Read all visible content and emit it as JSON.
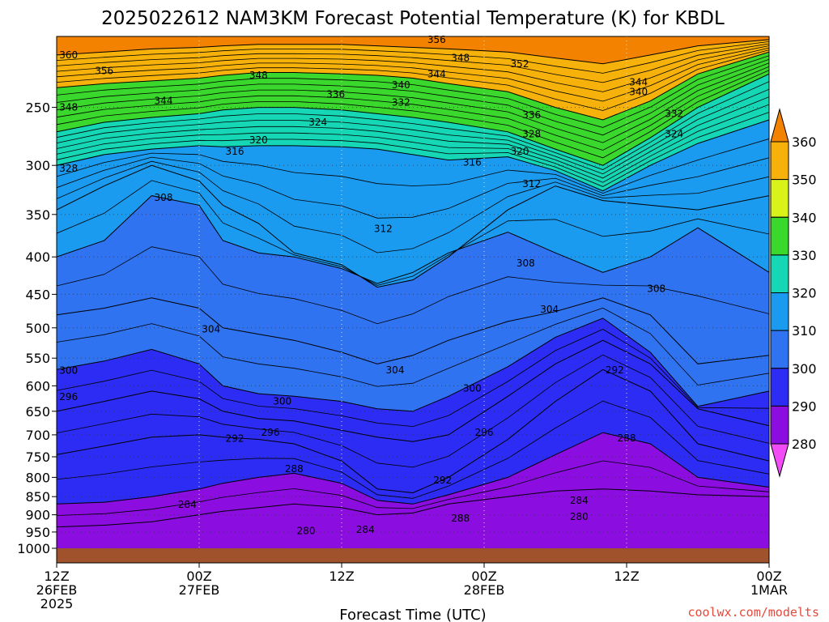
{
  "page_title": "2025022612 NAM3KM Forecast Potential Temperature (K) for KBDL",
  "x_axis_title": "Forecast Time (UTC)",
  "credit": "coolwx.com/modelts",
  "chart_data": {
    "type": "heatmap",
    "title": "2025022612 NAM3KM Forecast Potential Temperature (K) for KBDL",
    "xlabel": "Forecast Time (UTC)",
    "ylabel": "",
    "x_ticks": [
      {
        "hour": 0,
        "lines": [
          "12Z",
          "26FEB",
          "2025"
        ]
      },
      {
        "hour": 12,
        "lines": [
          "00Z",
          "27FEB"
        ]
      },
      {
        "hour": 24,
        "lines": [
          "12Z"
        ]
      },
      {
        "hour": 36,
        "lines": [
          "00Z",
          "28FEB"
        ]
      },
      {
        "hour": 48,
        "lines": [
          "12Z"
        ]
      },
      {
        "hour": 60,
        "lines": [
          "00Z",
          "1MAR"
        ]
      }
    ],
    "x_range": [
      0,
      60
    ],
    "y_axis_pressure_hpa": [
      250,
      300,
      350,
      400,
      450,
      500,
      550,
      600,
      650,
      700,
      750,
      800,
      850,
      900,
      950,
      1000
    ],
    "y_range_hpa": [
      1000,
      200
    ],
    "y_scale": "log-pressure",
    "grid": "dotted",
    "colorbar": {
      "ticks": [
        280,
        290,
        300,
        310,
        320,
        330,
        340,
        350,
        360
      ],
      "colors": [
        "#f14cf5",
        "#8b0de0",
        "#2c2cf5",
        "#2f73f0",
        "#1b9bf0",
        "#15d6b5",
        "#3ad82c",
        "#d8f21a",
        "#f6b20a",
        "#f28200"
      ]
    },
    "isentropes_sample": [
      {
        "theta_k": 284,
        "pressure_hpa": [
          935,
          930,
          920,
          900,
          890,
          880,
          870,
          880,
          900,
          895,
          870,
          850,
          835,
          830,
          835,
          845,
          850
        ]
      },
      {
        "theta_k": 288,
        "pressure_hpa": [
          870,
          865,
          850,
          830,
          815,
          800,
          790,
          815,
          860,
          870,
          845,
          800,
          745,
          695,
          720,
          800,
          825
        ]
      },
      {
        "theta_k": 292,
        "pressure_hpa": [
          745,
          725,
          705,
          700,
          705,
          710,
          720,
          760,
          830,
          840,
          800,
          710,
          630,
          570,
          610,
          720,
          760
        ]
      },
      {
        "theta_k": 296,
        "pressure_hpa": [
          650,
          630,
          610,
          625,
          650,
          665,
          670,
          690,
          705,
          715,
          700,
          620,
          560,
          520,
          560,
          645,
          680
        ]
      },
      {
        "theta_k": 300,
        "pressure_hpa": [
          570,
          555,
          535,
          560,
          600,
          615,
          620,
          630,
          645,
          650,
          620,
          565,
          515,
          485,
          540,
          640,
          610
        ]
      },
      {
        "theta_k": 304,
        "pressure_hpa": [
          480,
          470,
          455,
          470,
          500,
          510,
          520,
          540,
          560,
          545,
          520,
          490,
          475,
          455,
          480,
          560,
          545
        ]
      },
      {
        "theta_k": 308,
        "pressure_hpa": [
          400,
          380,
          330,
          340,
          380,
          395,
          400,
          415,
          435,
          420,
          395,
          370,
          395,
          420,
          400,
          365,
          420
        ]
      },
      {
        "theta_k": 312,
        "pressure_hpa": [
          345,
          320,
          300,
          315,
          340,
          360,
          395,
          410,
          440,
          430,
          400,
          345,
          320,
          335,
          340,
          345,
          330
        ]
      },
      {
        "theta_k": 320,
        "pressure_hpa": [
          300,
          290,
          285,
          282,
          283,
          282,
          282,
          283,
          285,
          290,
          295,
          292,
          305,
          325,
          300,
          280,
          260
        ]
      },
      {
        "theta_k": 332,
        "pressure_hpa": [
          270,
          262,
          258,
          255,
          252,
          250,
          250,
          252,
          255,
          258,
          262,
          270,
          285,
          300,
          275,
          250,
          225
        ]
      },
      {
        "theta_k": 344,
        "pressure_hpa": [
          235,
          232,
          230,
          228,
          226,
          224,
          224,
          225,
          226,
          228,
          232,
          238,
          250,
          260,
          245,
          225,
          210
        ]
      },
      {
        "theta_k": 356,
        "pressure_hpa": [
          212,
          210,
          208,
          207,
          206,
          205,
          205,
          205,
          206,
          207,
          208,
          210,
          214,
          218,
          212,
          206,
          202
        ]
      }
    ],
    "isentropes_sample_hours": [
      0,
      4,
      8,
      12,
      14,
      17,
      20,
      24,
      27,
      30,
      33,
      38,
      42,
      46,
      50,
      54,
      60
    ],
    "contour_labels": [
      {
        "text": "360",
        "hour": 1.0,
        "p": 212
      },
      {
        "text": "356",
        "hour": 4.0,
        "p": 223
      },
      {
        "text": "348",
        "hour": 1.0,
        "p": 250
      },
      {
        "text": "344",
        "hour": 9.0,
        "p": 245
      },
      {
        "text": "348",
        "hour": 17.0,
        "p": 226
      },
      {
        "text": "336",
        "hour": 23.5,
        "p": 240
      },
      {
        "text": "324",
        "hour": 22.0,
        "p": 262
      },
      {
        "text": "340",
        "hour": 29.0,
        "p": 233
      },
      {
        "text": "332",
        "hour": 29.0,
        "p": 246
      },
      {
        "text": "356",
        "hour": 32.0,
        "p": 202
      },
      {
        "text": "348",
        "hour": 34.0,
        "p": 214
      },
      {
        "text": "344",
        "hour": 32.0,
        "p": 225
      },
      {
        "text": "352",
        "hour": 39.0,
        "p": 218
      },
      {
        "text": "344",
        "hour": 49.0,
        "p": 231
      },
      {
        "text": "340",
        "hour": 49.0,
        "p": 238
      },
      {
        "text": "336",
        "hour": 40.0,
        "p": 256
      },
      {
        "text": "328",
        "hour": 40.0,
        "p": 272
      },
      {
        "text": "332",
        "hour": 52.0,
        "p": 255
      },
      {
        "text": "324",
        "hour": 52.0,
        "p": 272
      },
      {
        "text": "320",
        "hour": 17.0,
        "p": 277
      },
      {
        "text": "316",
        "hour": 15.0,
        "p": 287
      },
      {
        "text": "328",
        "hour": 1.0,
        "p": 303
      },
      {
        "text": "320",
        "hour": 39.0,
        "p": 287
      },
      {
        "text": "316",
        "hour": 35.0,
        "p": 297
      },
      {
        "text": "312",
        "hour": 40.0,
        "p": 318
      },
      {
        "text": "308",
        "hour": 9.0,
        "p": 332
      },
      {
        "text": "312",
        "hour": 27.5,
        "p": 366
      },
      {
        "text": "308",
        "hour": 39.5,
        "p": 408
      },
      {
        "text": "308",
        "hour": 50.5,
        "p": 442
      },
      {
        "text": "304",
        "hour": 41.5,
        "p": 472
      },
      {
        "text": "304",
        "hour": 13.0,
        "p": 502
      },
      {
        "text": "304",
        "hour": 28.5,
        "p": 571
      },
      {
        "text": "300",
        "hour": 1.0,
        "p": 572
      },
      {
        "text": "300",
        "hour": 35.0,
        "p": 605
      },
      {
        "text": "292",
        "hour": 47.0,
        "p": 571
      },
      {
        "text": "296",
        "hour": 1.0,
        "p": 621
      },
      {
        "text": "300",
        "hour": 19.0,
        "p": 630
      },
      {
        "text": "296",
        "hour": 18.0,
        "p": 695
      },
      {
        "text": "292",
        "hour": 15.0,
        "p": 708
      },
      {
        "text": "296",
        "hour": 36.0,
        "p": 695
      },
      {
        "text": "288",
        "hour": 48.0,
        "p": 707
      },
      {
        "text": "288",
        "hour": 20.0,
        "p": 779
      },
      {
        "text": "292",
        "hour": 32.5,
        "p": 807
      },
      {
        "text": "284",
        "hour": 11.0,
        "p": 871
      },
      {
        "text": "284",
        "hour": 44.0,
        "p": 860
      },
      {
        "text": "288",
        "hour": 34.0,
        "p": 910
      },
      {
        "text": "280",
        "hour": 44.0,
        "p": 906
      },
      {
        "text": "280",
        "hour": 21.0,
        "p": 947
      },
      {
        "text": "284",
        "hour": 26.0,
        "p": 943
      }
    ]
  }
}
